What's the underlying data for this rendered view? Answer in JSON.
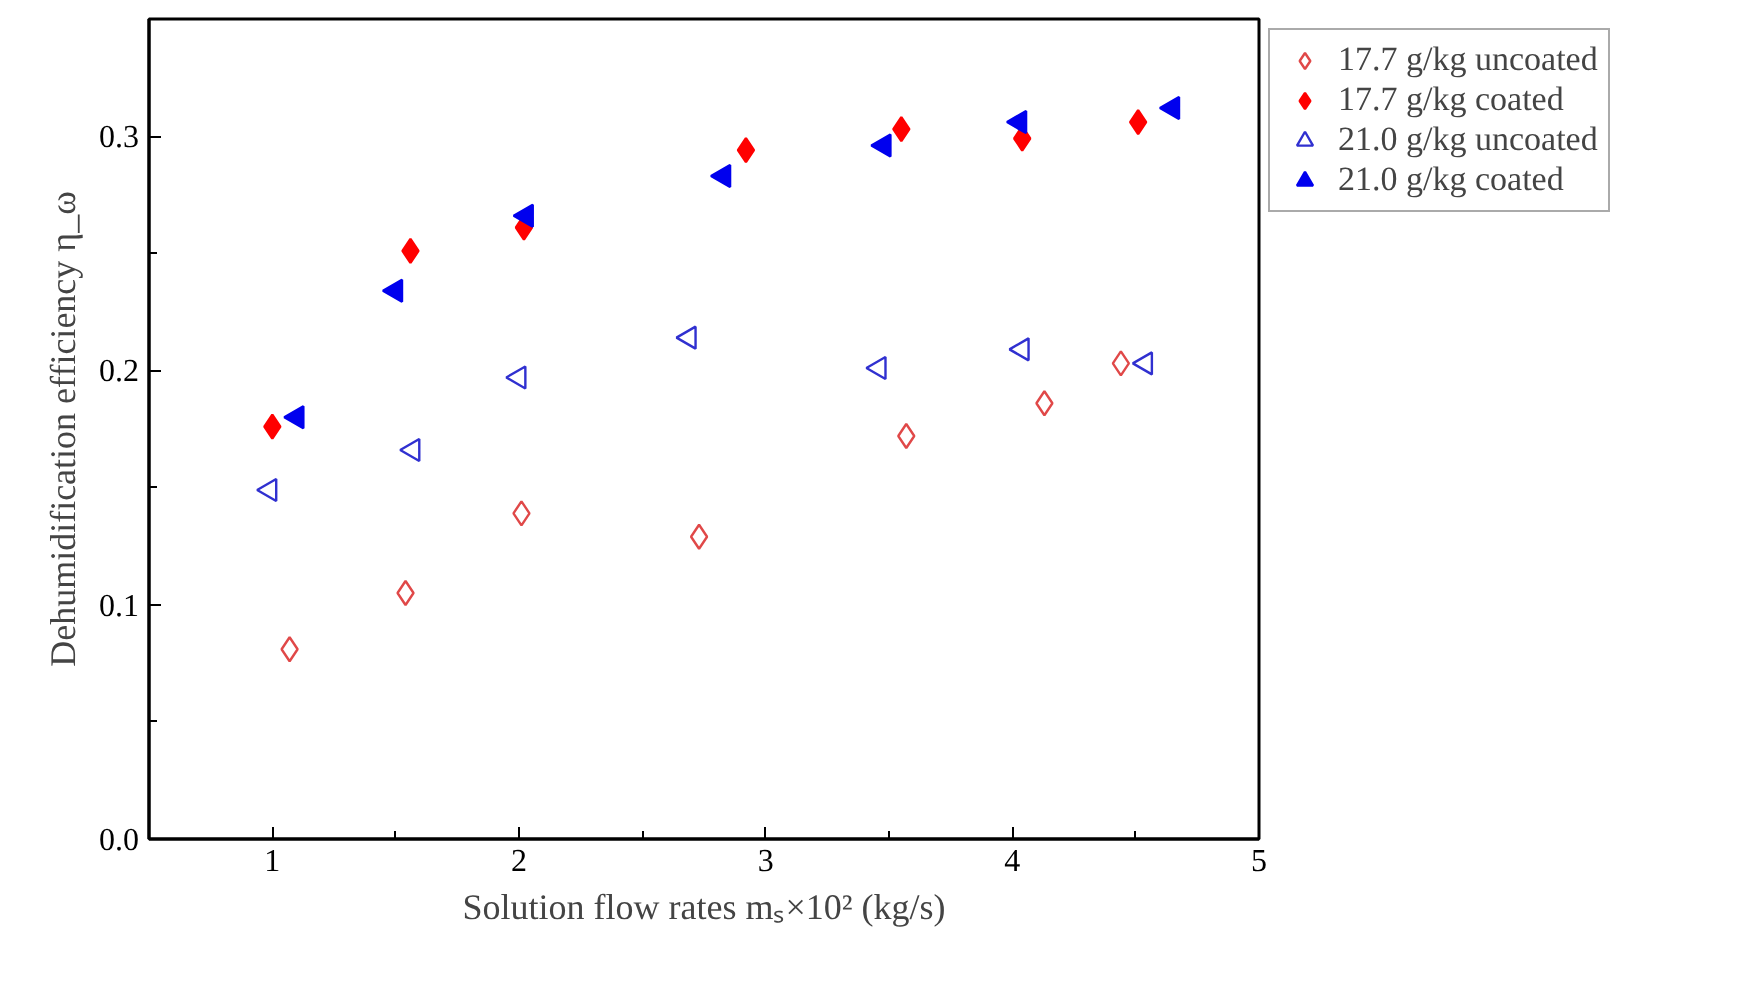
{
  "chart_data": {
    "type": "scatter",
    "xlabel": "Solution flow rates mₛ×10² (kg/s)",
    "ylabel": "Dehumidification efficiency η_ω",
    "xlim": [
      0.5,
      5
    ],
    "ylim": [
      0,
      0.35
    ],
    "xticks": [
      1,
      {
        "value": 1.5,
        "label": null
      },
      2,
      {
        "value": 2.5,
        "label": null
      },
      3,
      {
        "value": 3.5,
        "label": null
      },
      4,
      {
        "value": 4.5,
        "label": null
      },
      5
    ],
    "yticks": [
      {
        "value": 0,
        "label": "0.0"
      },
      {
        "value": 0.05,
        "label": null
      },
      0.1,
      {
        "value": 0.15,
        "label": null
      },
      0.2,
      {
        "value": 0.25,
        "label": null
      },
      0.3
    ],
    "grid": false,
    "legend": "top right",
    "series": [
      {
        "name": "17.7 g/kg uncoated",
        "color": "#e04848",
        "marker": "diamond",
        "x": [
          1.07,
          1.54,
          2.01,
          2.73,
          3.57,
          4.13,
          4.44
        ],
        "values": [
          0.081,
          0.105,
          0.139,
          0.129,
          0.172,
          0.186,
          0.203
        ]
      },
      {
        "name": "17.7 g/kg coated",
        "color": "#ff0000",
        "marker": "diamond",
        "x": [
          1.0,
          1.56,
          2.02,
          2.92,
          3.55,
          4.04,
          4.51
        ],
        "values": [
          0.176,
          0.251,
          0.261,
          0.294,
          0.303,
          0.299,
          0.306
        ]
      },
      {
        "name": "21.0 g/kg uncoated",
        "color": "#3030d0",
        "marker": "triangle",
        "x": [
          0.99,
          1.57,
          2.0,
          2.69,
          3.46,
          4.04,
          4.54
        ],
        "values": [
          0.149,
          0.166,
          0.197,
          0.214,
          0.201,
          0.209,
          0.203
        ]
      },
      {
        "name": "21.0 g/kg coated",
        "color": "#0000ee",
        "marker": "triangle",
        "x": [
          1.1,
          1.5,
          2.03,
          2.83,
          3.48,
          4.03,
          4.65
        ],
        "values": [
          0.18,
          0.234,
          0.266,
          0.283,
          0.296,
          0.306,
          0.312
        ]
      }
    ]
  }
}
